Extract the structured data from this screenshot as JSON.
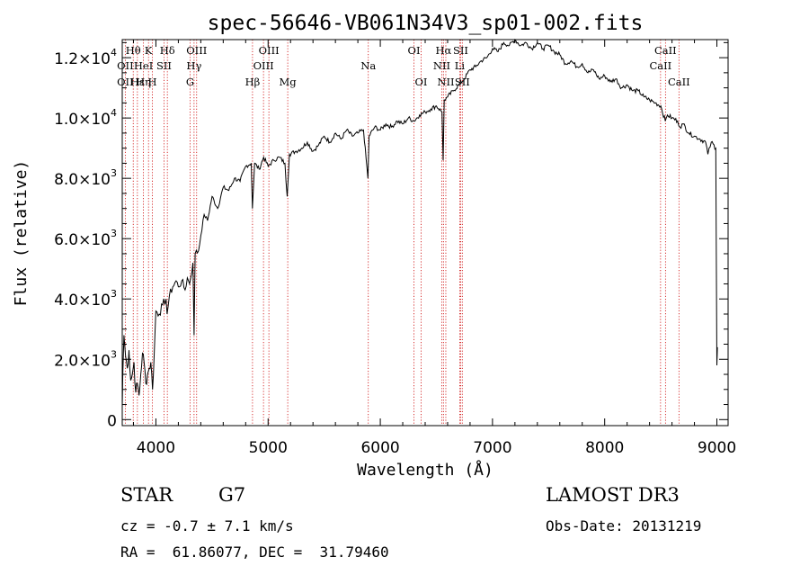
{
  "chart_data": {
    "type": "line",
    "title": "spec-56646-VB061N34V3_sp01-002.fits",
    "xlabel": "Wavelength (Å)",
    "ylabel": "Flux (relative)",
    "xlim": [
      3700,
      9100
    ],
    "ylim": [
      -200,
      12600
    ],
    "xticks": [
      4000,
      5000,
      6000,
      7000,
      8000,
      9000
    ],
    "yticks": [
      {
        "value": 0,
        "mant": "0",
        "exp": ""
      },
      {
        "value": 2000,
        "mant": "2.0×10",
        "exp": "3"
      },
      {
        "value": 4000,
        "mant": "4.0×10",
        "exp": "3"
      },
      {
        "value": 6000,
        "mant": "6.0×10",
        "exp": "3"
      },
      {
        "value": 8000,
        "mant": "8.0×10",
        "exp": "3"
      },
      {
        "value": 10000,
        "mant": "1.0×10",
        "exp": "4"
      },
      {
        "value": 12000,
        "mant": "1.2×10",
        "exp": "4"
      }
    ],
    "series": [
      {
        "name": "flux",
        "points": [
          [
            3700,
            400
          ],
          [
            3705,
            1500
          ],
          [
            3715,
            2800
          ],
          [
            3730,
            2100
          ],
          [
            3745,
            1700
          ],
          [
            3760,
            2300
          ],
          [
            3775,
            1300
          ],
          [
            3790,
            1500
          ],
          [
            3805,
            1900
          ],
          [
            3820,
            900
          ],
          [
            3835,
            1200
          ],
          [
            3850,
            800
          ],
          [
            3865,
            1500
          ],
          [
            3880,
            2200
          ],
          [
            3895,
            1900
          ],
          [
            3910,
            1200
          ],
          [
            3925,
            1500
          ],
          [
            3940,
            1700
          ],
          [
            3955,
            1900
          ],
          [
            3970,
            1000
          ],
          [
            3985,
            2200
          ],
          [
            4000,
            3600
          ],
          [
            4030,
            3500
          ],
          [
            4060,
            3800
          ],
          [
            4090,
            4000
          ],
          [
            4100,
            3500
          ],
          [
            4120,
            4100
          ],
          [
            4150,
            4400
          ],
          [
            4180,
            4600
          ],
          [
            4200,
            4400
          ],
          [
            4230,
            4600
          ],
          [
            4260,
            4300
          ],
          [
            4280,
            4700
          ],
          [
            4300,
            4500
          ],
          [
            4330,
            5200
          ],
          [
            4340,
            2800
          ],
          [
            4350,
            5500
          ],
          [
            4380,
            5600
          ],
          [
            4400,
            6100
          ],
          [
            4430,
            6800
          ],
          [
            4460,
            6600
          ],
          [
            4500,
            7400
          ],
          [
            4550,
            7000
          ],
          [
            4600,
            7700
          ],
          [
            4650,
            7600
          ],
          [
            4700,
            8000
          ],
          [
            4750,
            7900
          ],
          [
            4800,
            8400
          ],
          [
            4850,
            8500
          ],
          [
            4860,
            7000
          ],
          [
            4880,
            8500
          ],
          [
            4920,
            8300
          ],
          [
            4960,
            8700
          ],
          [
            5000,
            8400
          ],
          [
            5050,
            8600
          ],
          [
            5100,
            8700
          ],
          [
            5150,
            8500
          ],
          [
            5170,
            7400
          ],
          [
            5190,
            8800
          ],
          [
            5250,
            8900
          ],
          [
            5300,
            9000
          ],
          [
            5350,
            9200
          ],
          [
            5400,
            8900
          ],
          [
            5450,
            9100
          ],
          [
            5500,
            9400
          ],
          [
            5550,
            9200
          ],
          [
            5600,
            9500
          ],
          [
            5650,
            9300
          ],
          [
            5700,
            9600
          ],
          [
            5750,
            9400
          ],
          [
            5800,
            9500
          ],
          [
            5850,
            9600
          ],
          [
            5890,
            8000
          ],
          [
            5900,
            9400
          ],
          [
            5950,
            9700
          ],
          [
            6000,
            9600
          ],
          [
            6050,
            9800
          ],
          [
            6100,
            9700
          ],
          [
            6150,
            9900
          ],
          [
            6200,
            9800
          ],
          [
            6250,
            10000
          ],
          [
            6300,
            9900
          ],
          [
            6350,
            10100
          ],
          [
            6400,
            10200
          ],
          [
            6450,
            10300
          ],
          [
            6500,
            10400
          ],
          [
            6550,
            10200
          ],
          [
            6560,
            8600
          ],
          [
            6570,
            10600
          ],
          [
            6600,
            10700
          ],
          [
            6650,
            10900
          ],
          [
            6700,
            11100
          ],
          [
            6750,
            11300
          ],
          [
            6800,
            11600
          ],
          [
            6850,
            11700
          ],
          [
            6900,
            11900
          ],
          [
            6950,
            12000
          ],
          [
            7000,
            12300
          ],
          [
            7050,
            12200
          ],
          [
            7100,
            12500
          ],
          [
            7150,
            12400
          ],
          [
            7200,
            12600
          ],
          [
            7250,
            12400
          ],
          [
            7300,
            12500
          ],
          [
            7350,
            12300
          ],
          [
            7400,
            12500
          ],
          [
            7450,
            12300
          ],
          [
            7500,
            12400
          ],
          [
            7550,
            12200
          ],
          [
            7600,
            12100
          ],
          [
            7650,
            11800
          ],
          [
            7700,
            11900
          ],
          [
            7750,
            11700
          ],
          [
            7800,
            11800
          ],
          [
            7850,
            11500
          ],
          [
            7900,
            11600
          ],
          [
            7950,
            11300
          ],
          [
            8000,
            11400
          ],
          [
            8050,
            11200
          ],
          [
            8100,
            11300
          ],
          [
            8150,
            11000
          ],
          [
            8200,
            11100
          ],
          [
            8250,
            10900
          ],
          [
            8300,
            10900
          ],
          [
            8350,
            10700
          ],
          [
            8400,
            10600
          ],
          [
            8450,
            10500
          ],
          [
            8500,
            10400
          ],
          [
            8540,
            9900
          ],
          [
            8560,
            10100
          ],
          [
            8600,
            10000
          ],
          [
            8650,
            9900
          ],
          [
            8670,
            9700
          ],
          [
            8700,
            9800
          ],
          [
            8750,
            9500
          ],
          [
            8800,
            9400
          ],
          [
            8850,
            9300
          ],
          [
            8900,
            9200
          ],
          [
            8920,
            8800
          ],
          [
            8950,
            9200
          ],
          [
            8990,
            9000
          ],
          [
            9000,
            1800
          ],
          [
            9005,
            2400
          ]
        ]
      }
    ],
    "line_labels": [
      {
        "text": "Hθ",
        "x": 3798,
        "row": 0
      },
      {
        "text": "K",
        "x": 3934,
        "row": 0
      },
      {
        "text": "Hδ",
        "x": 4102,
        "row": 0
      },
      {
        "text": "OIII",
        "x": 4363,
        "row": 0
      },
      {
        "text": "OIII",
        "x": 5007,
        "row": 0
      },
      {
        "text": "OI",
        "x": 6300,
        "row": 0
      },
      {
        "text": "Hα",
        "x": 6563,
        "row": 0
      },
      {
        "text": "SII",
        "x": 6716,
        "row": 0
      },
      {
        "text": "CaII",
        "x": 8542,
        "row": 0
      },
      {
        "text": "OII",
        "x": 3727,
        "row": 1
      },
      {
        "text": "HeI",
        "x": 3889,
        "row": 1
      },
      {
        "text": "SII",
        "x": 4072,
        "row": 1
      },
      {
        "text": "Hγ",
        "x": 4340,
        "row": 1
      },
      {
        "text": "OIII",
        "x": 4959,
        "row": 1
      },
      {
        "text": "Na",
        "x": 5893,
        "row": 1
      },
      {
        "text": "NII",
        "x": 6548,
        "row": 1
      },
      {
        "text": "Li",
        "x": 6708,
        "row": 1
      },
      {
        "text": "CaII",
        "x": 8498,
        "row": 1
      },
      {
        "text": "OII",
        "x": 3727,
        "row": 2
      },
      {
        "text": "Hε",
        "x": 3835,
        "row": 2
      },
      {
        "text": "Hη",
        "x": 3889,
        "row": 2
      },
      {
        "text": "H",
        "x": 3969,
        "row": 2
      },
      {
        "text": "G",
        "x": 4305,
        "row": 2
      },
      {
        "text": "Hβ",
        "x": 4861,
        "row": 2
      },
      {
        "text": "Mg",
        "x": 5175,
        "row": 2
      },
      {
        "text": "OI",
        "x": 6364,
        "row": 2
      },
      {
        "text": "NII",
        "x": 6584,
        "row": 2
      },
      {
        "text": "SII",
        "x": 6731,
        "row": 2
      },
      {
        "text": "CaII",
        "x": 8662,
        "row": 2
      }
    ],
    "marker_lines": [
      3727,
      3798,
      3835,
      3889,
      3934,
      3969,
      4072,
      4102,
      4305,
      4340,
      4363,
      4861,
      4959,
      5007,
      5175,
      5893,
      6300,
      6364,
      6548,
      6563,
      6584,
      6708,
      6716,
      6731,
      8498,
      8542,
      8662
    ],
    "colors": {
      "axis": "#000000",
      "spectrum": "#000000",
      "marker": "#cc0000"
    }
  },
  "info": {
    "object_class": "STAR",
    "subclass": "G7",
    "cz": "cz = -0.7 ± 7.1 km/s",
    "radec": "RA =  61.86077, DEC =  31.79460",
    "survey": "LAMOST DR3",
    "obs_date": "Obs-Date: 20131219"
  }
}
